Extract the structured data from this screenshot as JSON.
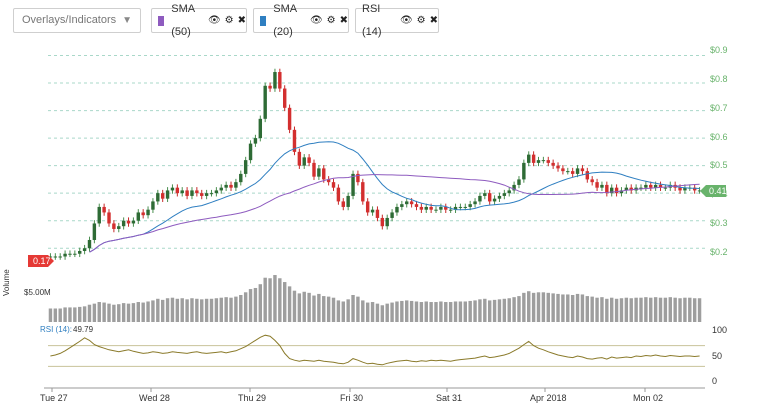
{
  "toolbar": {
    "overlays_placeholder": "Overlays/Indicators",
    "chips": [
      {
        "label": "SMA (50)",
        "color": "#8e5bbf"
      },
      {
        "label": "SMA (20)",
        "color": "#2f7fc1"
      },
      {
        "label": "RSI (14)",
        "color": "#ffffff"
      }
    ]
  },
  "price_axis": {
    "ticks": [
      "$0.9",
      "$0.8",
      "$0.7",
      "$0.6",
      "$0.5",
      "$0.4",
      "$0.3",
      "$0.2"
    ],
    "current_price_label": "0.41",
    "start_price_label": "0.17"
  },
  "volume": {
    "axis_label": "Volume",
    "scale_label": "$5.00M"
  },
  "rsi": {
    "label": "RSI (14):",
    "value": "49.79",
    "ticks": [
      "100",
      "50",
      "0"
    ]
  },
  "x_axis": {
    "labels": [
      "Tue 27",
      "Wed 28",
      "Thu 29",
      "Fri 30",
      "Sat 31",
      "Apr 2018",
      "Mon 02"
    ]
  },
  "chart_data": {
    "type": "candlestick",
    "ylim": [
      0.15,
      0.92
    ],
    "price_ticks": [
      0.9,
      0.8,
      0.7,
      0.6,
      0.5,
      0.4,
      0.3,
      0.2
    ],
    "close": [
      0.17,
      0.17,
      0.17,
      0.18,
      0.18,
      0.18,
      0.19,
      0.2,
      0.23,
      0.29,
      0.35,
      0.33,
      0.29,
      0.27,
      0.28,
      0.3,
      0.29,
      0.3,
      0.33,
      0.32,
      0.34,
      0.37,
      0.4,
      0.38,
      0.41,
      0.42,
      0.4,
      0.41,
      0.39,
      0.41,
      0.4,
      0.39,
      0.4,
      0.4,
      0.41,
      0.42,
      0.43,
      0.42,
      0.44,
      0.47,
      0.52,
      0.58,
      0.6,
      0.67,
      0.79,
      0.78,
      0.84,
      0.78,
      0.71,
      0.63,
      0.55,
      0.5,
      0.53,
      0.51,
      0.46,
      0.49,
      0.45,
      0.44,
      0.42,
      0.37,
      0.35,
      0.39,
      0.47,
      0.44,
      0.37,
      0.33,
      0.34,
      0.31,
      0.28,
      0.31,
      0.33,
      0.35,
      0.36,
      0.37,
      0.36,
      0.35,
      0.34,
      0.35,
      0.34,
      0.34,
      0.35,
      0.34,
      0.34,
      0.35,
      0.35,
      0.35,
      0.36,
      0.37,
      0.39,
      0.4,
      0.37,
      0.38,
      0.39,
      0.4,
      0.41,
      0.43,
      0.45,
      0.51,
      0.54,
      0.51,
      0.52,
      0.52,
      0.51,
      0.5,
      0.49,
      0.48,
      0.48,
      0.47,
      0.49,
      0.48,
      0.45,
      0.44,
      0.42,
      0.43,
      0.4,
      0.42,
      0.4,
      0.41,
      0.42,
      0.41,
      0.42,
      0.42,
      0.43,
      0.42,
      0.43,
      0.42,
      0.42,
      0.43,
      0.42,
      0.41,
      0.42,
      0.42,
      0.41,
      0.41
    ],
    "volume": [
      0.25,
      0.25,
      0.25,
      0.27,
      0.27,
      0.27,
      0.28,
      0.29,
      0.32,
      0.34,
      0.37,
      0.36,
      0.34,
      0.32,
      0.33,
      0.35,
      0.34,
      0.35,
      0.37,
      0.36,
      0.38,
      0.4,
      0.43,
      0.41,
      0.44,
      0.45,
      0.43,
      0.44,
      0.42,
      0.44,
      0.43,
      0.42,
      0.43,
      0.43,
      0.44,
      0.45,
      0.46,
      0.45,
      0.47,
      0.5,
      0.55,
      0.61,
      0.63,
      0.7,
      0.82,
      0.81,
      0.87,
      0.81,
      0.74,
      0.66,
      0.58,
      0.53,
      0.56,
      0.54,
      0.49,
      0.52,
      0.48,
      0.47,
      0.45,
      0.4,
      0.38,
      0.42,
      0.5,
      0.47,
      0.4,
      0.36,
      0.37,
      0.34,
      0.31,
      0.34,
      0.36,
      0.38,
      0.39,
      0.4,
      0.39,
      0.38,
      0.37,
      0.38,
      0.37,
      0.37,
      0.38,
      0.37,
      0.37,
      0.38,
      0.38,
      0.38,
      0.39,
      0.4,
      0.42,
      0.43,
      0.4,
      0.41,
      0.42,
      0.43,
      0.44,
      0.46,
      0.48,
      0.54,
      0.57,
      0.54,
      0.55,
      0.55,
      0.54,
      0.53,
      0.52,
      0.51,
      0.51,
      0.5,
      0.52,
      0.51,
      0.48,
      0.47,
      0.45,
      0.46,
      0.43,
      0.45,
      0.43,
      0.44,
      0.45,
      0.44,
      0.45,
      0.45,
      0.46,
      0.45,
      0.46,
      0.45,
      0.45,
      0.46,
      0.45,
      0.44,
      0.45,
      0.45,
      0.44,
      0.44
    ],
    "rsi": [
      50,
      52,
      55,
      60,
      66,
      72,
      78,
      85,
      80,
      72,
      68,
      65,
      62,
      60,
      58,
      60,
      62,
      59,
      57,
      55,
      56,
      58,
      57,
      55,
      56,
      58,
      57,
      56,
      55,
      57,
      58,
      56,
      55,
      56,
      57,
      58,
      56,
      58,
      60,
      64,
      68,
      74,
      80,
      86,
      90,
      88,
      80,
      70,
      55,
      45,
      42,
      40,
      42,
      41,
      40,
      42,
      40,
      39,
      38,
      36,
      35,
      38,
      45,
      42,
      38,
      35,
      36,
      34,
      33,
      36,
      38,
      40,
      41,
      42,
      40,
      39,
      41,
      40,
      42,
      41,
      42,
      41,
      40,
      42,
      43,
      44,
      45,
      46,
      48,
      50,
      47,
      48,
      50,
      52,
      55,
      60,
      65,
      72,
      78,
      70,
      65,
      62,
      58,
      55,
      52,
      50,
      48,
      47,
      50,
      48,
      45,
      44,
      46,
      47,
      44,
      48,
      46,
      47,
      48,
      47,
      50,
      49,
      51,
      50,
      52,
      50,
      49,
      51,
      50,
      49,
      50,
      50,
      49,
      50
    ],
    "rsi_levels": [
      70,
      30
    ]
  }
}
